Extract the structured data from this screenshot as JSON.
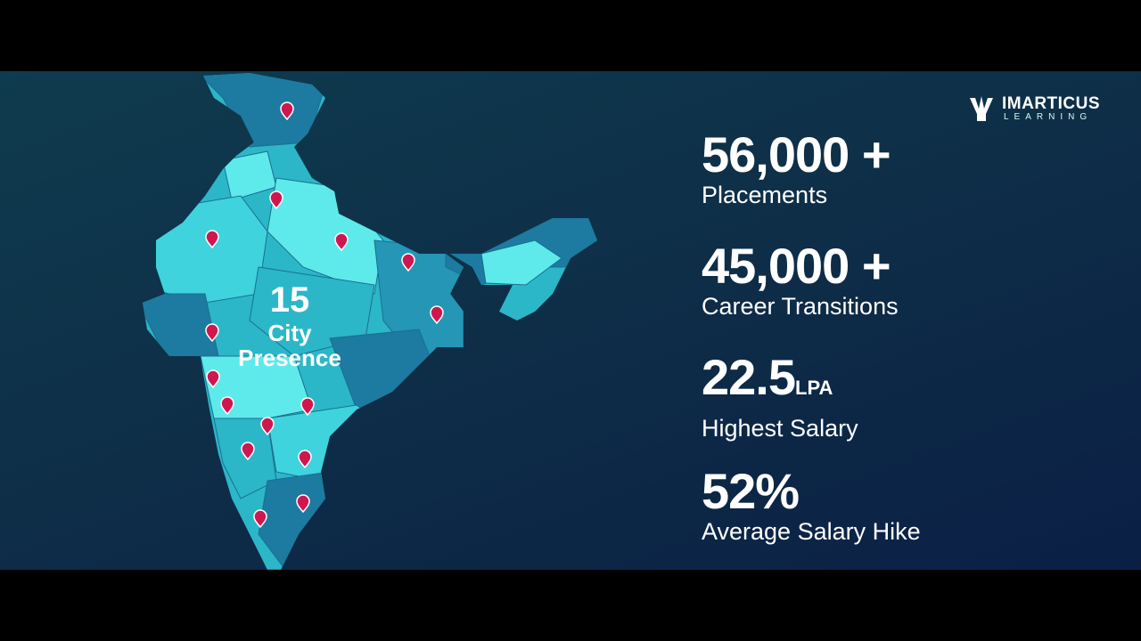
{
  "logo": {
    "name": "IMARTICUS",
    "tagline": "LEARNING"
  },
  "map": {
    "count": "15",
    "label_line1": "City",
    "label_line2": "Presence"
  },
  "stats": [
    {
      "value": "56,000 +",
      "label": "Placements"
    },
    {
      "value": "45,000 +",
      "label": "Career Transitions"
    },
    {
      "value": "22.5",
      "unit": "LPA",
      "label": "Highest Salary"
    },
    {
      "value": "52%",
      "label": "Average Salary Hike"
    }
  ]
}
